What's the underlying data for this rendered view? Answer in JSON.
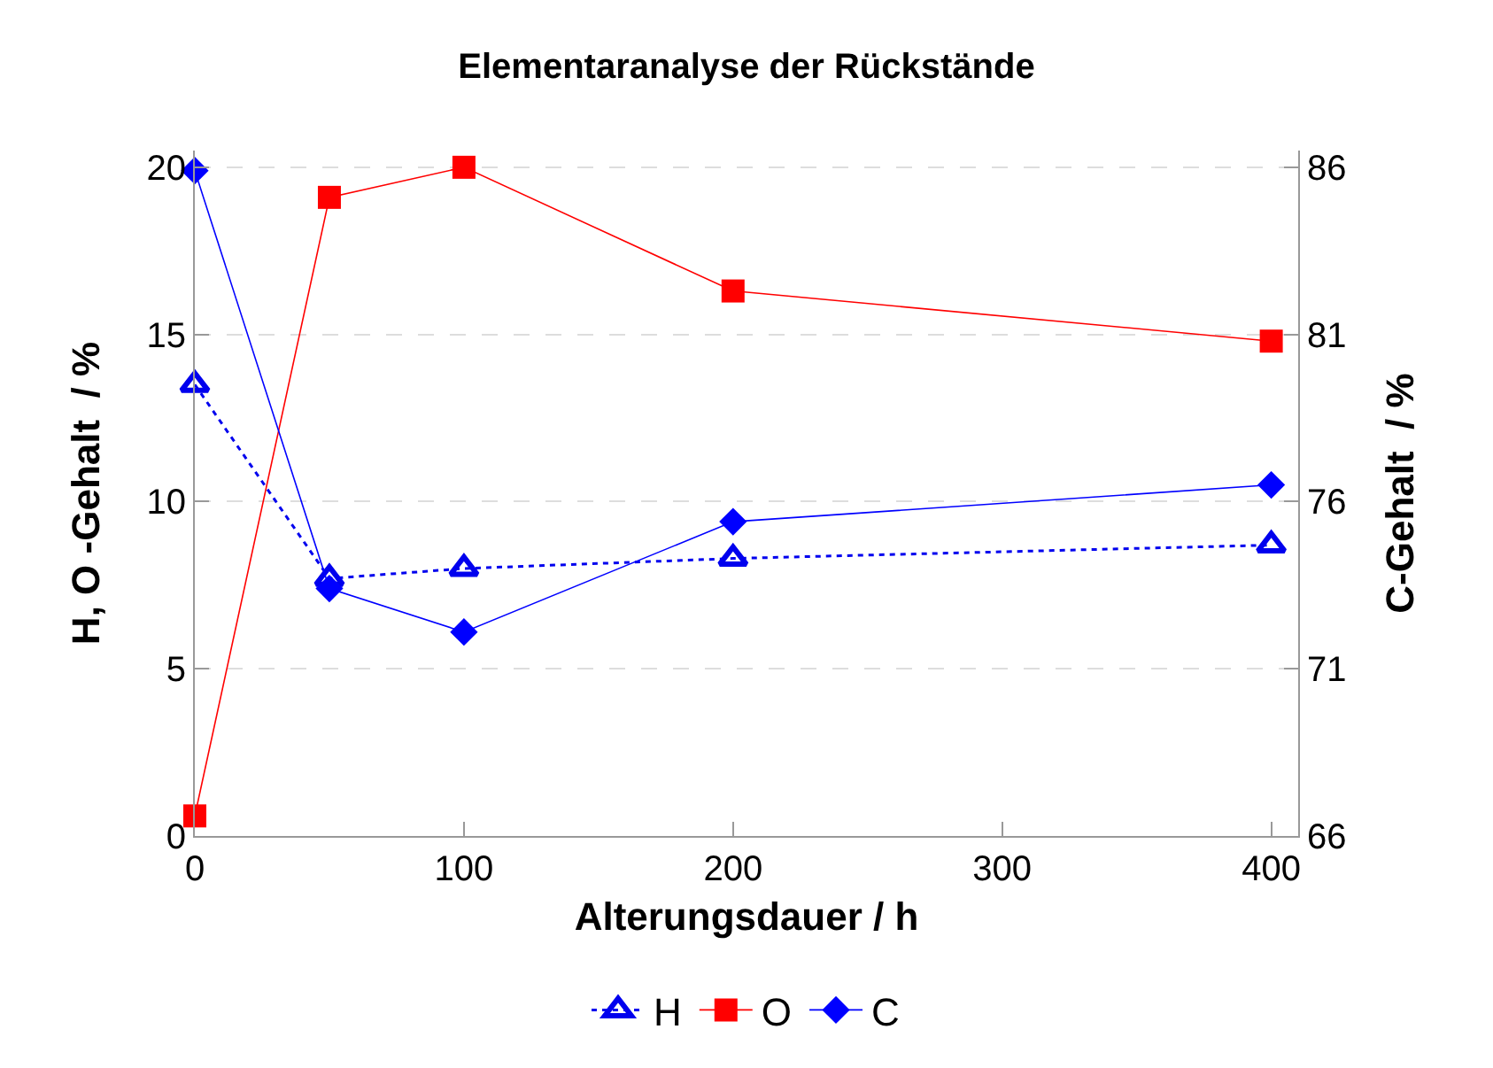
{
  "chart_data": {
    "type": "line",
    "title": "Elementaranalyse der Rückstände",
    "xlabel": "Alterungsdauer / h",
    "ylabel": "H, O -Gehalt  / %",
    "y2label": "C-Gehalt  / %",
    "x": [
      0,
      50,
      100,
      200,
      400
    ],
    "xlim": [
      0,
      410
    ],
    "xticks": [
      0,
      100,
      200,
      300,
      400
    ],
    "ylim": [
      0,
      20.5
    ],
    "yticks": [
      0,
      5,
      10,
      15,
      20
    ],
    "y2lim": [
      66,
      86.5
    ],
    "y2ticks": [
      66,
      71,
      76,
      81,
      86
    ],
    "grid": "y",
    "legend": "bottom",
    "series": [
      {
        "name": "H",
        "color": "#0000ee",
        "values": [
          13.5,
          7.7,
          8.0,
          8.3,
          8.7
        ],
        "marker": "triangle",
        "line_style": "dotted"
      },
      {
        "name": "O",
        "color": "#ff0000",
        "values": [
          0.6,
          19.1,
          20.0,
          16.3,
          14.8
        ],
        "marker": "square",
        "line_style": "solid"
      },
      {
        "name": "C",
        "color": "#0000ff",
        "values": [
          85.9,
          73.4,
          72.1,
          75.4,
          76.5
        ],
        "marker": "diamond",
        "line_style": "solid",
        "axis": "y2"
      }
    ]
  }
}
